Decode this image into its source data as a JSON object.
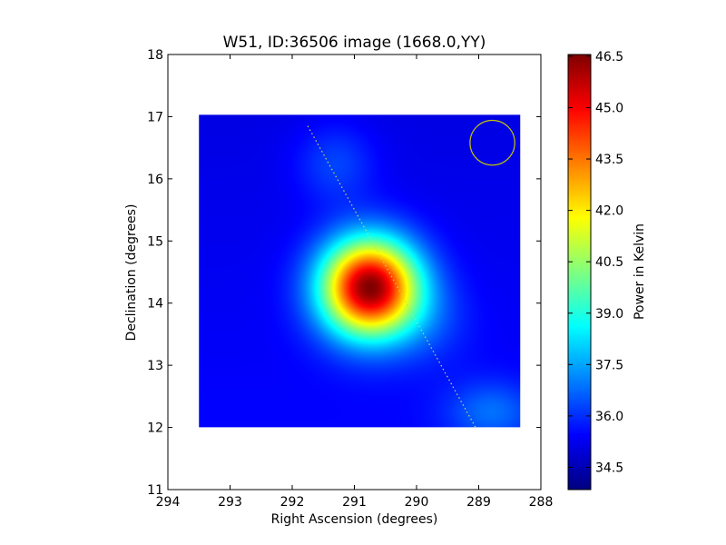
{
  "chart_data": {
    "type": "heatmap",
    "title": "W51, ID:36506 image (1668.0,YY)",
    "xlabel": "Right Ascension (degrees)",
    "ylabel": "Declination (degrees)",
    "xlim": [
      294,
      288
    ],
    "ylim": [
      11,
      18
    ],
    "x_ticks": [
      294,
      293,
      292,
      291,
      290,
      289,
      288
    ],
    "y_ticks": [
      11,
      12,
      13,
      14,
      15,
      16,
      17,
      18
    ],
    "x_tick_labels": [
      "294",
      "293",
      "292",
      "291",
      "290",
      "289",
      "288"
    ],
    "y_tick_labels": [
      "11",
      "12",
      "13",
      "14",
      "15",
      "16",
      "17",
      "18"
    ],
    "image_extent": {
      "ra": [
        293.5,
        288.33
      ],
      "dec": [
        12.0,
        17.03
      ]
    },
    "colormap": "jet",
    "background_level": 35.1,
    "sources": [
      {
        "ra": 290.75,
        "dec": 14.25,
        "peak": 46.3,
        "sigma_ra": 0.55,
        "sigma_dec": 0.55
      },
      {
        "ra": 291.3,
        "dec": 16.25,
        "peak": 36.2,
        "sigma_ra": 0.45,
        "sigma_dec": 0.45
      },
      {
        "ra": 288.8,
        "dec": 12.25,
        "peak": 36.5,
        "sigma_ra": 0.5,
        "sigma_dec": 0.35
      },
      {
        "ra": 289.8,
        "dec": 13.7,
        "peak": 35.8,
        "sigma_ra": 0.5,
        "sigma_dec": 0.5
      }
    ],
    "galactic_plane_line": {
      "ra": [
        291.75,
        289.05
      ],
      "dec": [
        16.85,
        12.0
      ],
      "color": "#d4d45a",
      "style": "dotted"
    },
    "beam_circle": {
      "ra": 288.78,
      "dec": 16.58,
      "radius_deg": 0.36,
      "color": "#c8c800"
    },
    "colorbar": {
      "label": "Power in Kelvin",
      "range": [
        33.85,
        46.55
      ],
      "ticks": [
        34.5,
        36.0,
        37.5,
        39.0,
        40.5,
        42.0,
        43.5,
        45.0,
        46.5
      ],
      "tick_labels": [
        "34.5",
        "36.0",
        "37.5",
        "39.0",
        "40.5",
        "42.0",
        "43.5",
        "45.0",
        "46.5"
      ]
    }
  }
}
